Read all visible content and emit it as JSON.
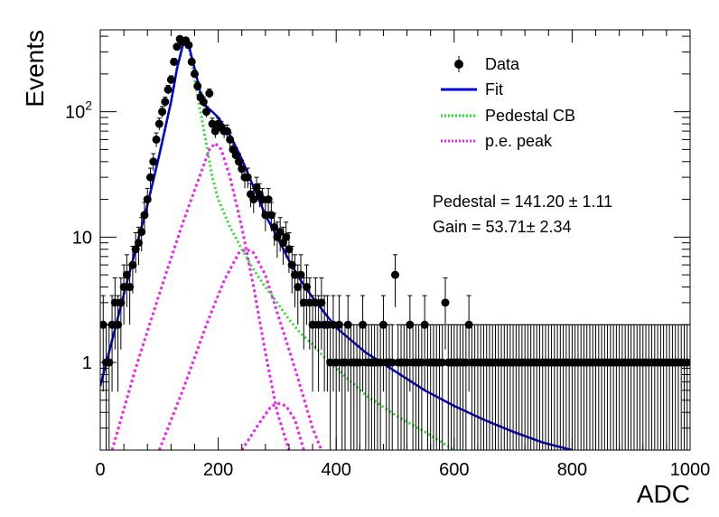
{
  "chart_data": {
    "type": "scatter",
    "xlabel": "ADC",
    "ylabel": "Events",
    "xlim": [
      0,
      1000
    ],
    "ylim": [
      0.2,
      450
    ],
    "yscale": "log",
    "grid": false,
    "x_ticks": [
      0,
      200,
      400,
      600,
      800,
      1000
    ],
    "x_tick_labels": [
      "0",
      "200",
      "400",
      "600",
      "800",
      "1000"
    ],
    "y_ticks": [
      1,
      10,
      100
    ],
    "y_tick_labels": [
      "1",
      "10",
      "10^2"
    ],
    "legend": {
      "position": "top-right",
      "entries": [
        {
          "label": "Data",
          "style": "marker",
          "color": "#000000"
        },
        {
          "label": "Fit",
          "style": "solid",
          "color": "#0000dd"
        },
        {
          "label": "Pedestal CB",
          "style": "dotted",
          "color": "#22dd22"
        },
        {
          "label": "p.e. peak",
          "style": "dotted",
          "color": "#ee22ee"
        }
      ]
    },
    "annotations": [
      {
        "text": "Pedestal = 141.20 ± 1.11"
      },
      {
        "text": "Gain = 53.71± 2.34"
      }
    ],
    "fit_parameters": {
      "pedestal": 141.2,
      "pedestal_error": 1.11,
      "gain": 53.71,
      "gain_error": 2.34
    },
    "data_series": {
      "name": "Data",
      "points": [
        [
          5,
          2
        ],
        [
          10,
          1
        ],
        [
          15,
          1
        ],
        [
          20,
          2
        ],
        [
          25,
          3
        ],
        [
          30,
          2
        ],
        [
          35,
          3
        ],
        [
          40,
          4
        ],
        [
          45,
          5
        ],
        [
          50,
          4
        ],
        [
          55,
          6
        ],
        [
          60,
          8
        ],
        [
          65,
          9
        ],
        [
          70,
          11
        ],
        [
          75,
          15
        ],
        [
          80,
          20
        ],
        [
          85,
          30
        ],
        [
          90,
          40
        ],
        [
          95,
          60
        ],
        [
          100,
          80
        ],
        [
          105,
          100
        ],
        [
          110,
          120
        ],
        [
          115,
          150
        ],
        [
          120,
          180
        ],
        [
          125,
          250
        ],
        [
          130,
          330
        ],
        [
          135,
          380
        ],
        [
          140,
          360
        ],
        [
          145,
          370
        ],
        [
          150,
          340
        ],
        [
          155,
          250
        ],
        [
          160,
          200
        ],
        [
          165,
          160
        ],
        [
          170,
          130
        ],
        [
          175,
          120
        ],
        [
          180,
          100
        ],
        [
          185,
          140
        ],
        [
          190,
          80
        ],
        [
          195,
          70
        ],
        [
          200,
          80
        ],
        [
          205,
          75
        ],
        [
          210,
          70
        ],
        [
          215,
          70
        ],
        [
          220,
          60
        ],
        [
          225,
          50
        ],
        [
          230,
          45
        ],
        [
          235,
          40
        ],
        [
          240,
          35
        ],
        [
          245,
          30
        ],
        [
          250,
          30
        ],
        [
          255,
          22
        ],
        [
          260,
          20
        ],
        [
          265,
          25
        ],
        [
          270,
          22
        ],
        [
          275,
          20
        ],
        [
          280,
          15
        ],
        [
          285,
          20
        ],
        [
          290,
          15
        ],
        [
          295,
          12
        ],
        [
          300,
          10
        ],
        [
          305,
          11
        ],
        [
          310,
          9
        ],
        [
          315,
          10
        ],
        [
          320,
          8
        ],
        [
          325,
          6
        ],
        [
          330,
          5
        ],
        [
          335,
          4
        ],
        [
          340,
          5
        ],
        [
          345,
          3
        ],
        [
          350,
          4
        ],
        [
          355,
          3
        ],
        [
          360,
          2
        ],
        [
          365,
          3
        ],
        [
          370,
          2
        ],
        [
          375,
          3
        ],
        [
          380,
          2
        ],
        [
          385,
          2
        ],
        [
          390,
          1
        ],
        [
          395,
          2
        ],
        [
          400,
          1
        ],
        [
          405,
          2
        ],
        [
          410,
          1
        ],
        [
          415,
          1
        ],
        [
          420,
          2
        ],
        [
          425,
          1
        ],
        [
          430,
          1
        ],
        [
          435,
          1
        ],
        [
          440,
          1
        ],
        [
          445,
          2
        ],
        [
          450,
          1
        ],
        [
          455,
          1
        ],
        [
          460,
          1
        ],
        [
          465,
          1
        ],
        [
          470,
          1
        ],
        [
          475,
          1
        ],
        [
          480,
          2
        ],
        [
          485,
          1
        ],
        [
          490,
          1
        ],
        [
          495,
          1
        ],
        [
          500,
          5
        ],
        [
          505,
          1
        ],
        [
          510,
          1
        ],
        [
          515,
          1
        ],
        [
          520,
          1
        ],
        [
          525,
          2
        ],
        [
          530,
          1
        ],
        [
          535,
          1
        ],
        [
          540,
          1
        ],
        [
          545,
          1
        ],
        [
          550,
          2
        ],
        [
          555,
          1
        ],
        [
          560,
          1
        ],
        [
          565,
          1
        ],
        [
          570,
          1
        ],
        [
          575,
          1
        ],
        [
          580,
          1
        ],
        [
          585,
          3
        ],
        [
          590,
          1
        ],
        [
          595,
          1
        ],
        [
          600,
          1
        ],
        [
          605,
          1
        ],
        [
          610,
          1
        ],
        [
          615,
          1
        ],
        [
          620,
          1
        ],
        [
          625,
          2
        ],
        [
          630,
          1
        ],
        [
          635,
          1
        ],
        [
          640,
          1
        ],
        [
          645,
          1
        ],
        [
          650,
          1
        ],
        [
          655,
          1
        ],
        [
          660,
          1
        ],
        [
          665,
          1
        ],
        [
          670,
          1
        ],
        [
          675,
          1
        ],
        [
          680,
          1
        ],
        [
          685,
          1
        ],
        [
          690,
          1
        ],
        [
          695,
          1
        ],
        [
          700,
          1
        ],
        [
          705,
          1
        ],
        [
          710,
          1
        ],
        [
          715,
          1
        ],
        [
          720,
          1
        ],
        [
          725,
          1
        ],
        [
          730,
          1
        ],
        [
          735,
          1
        ],
        [
          740,
          1
        ],
        [
          745,
          1
        ],
        [
          750,
          1
        ],
        [
          755,
          1
        ],
        [
          760,
          1
        ],
        [
          765,
          1
        ],
        [
          770,
          1
        ],
        [
          775,
          1
        ],
        [
          780,
          1
        ],
        [
          785,
          1
        ],
        [
          790,
          1
        ],
        [
          795,
          1
        ],
        [
          800,
          1
        ],
        [
          805,
          1
        ],
        [
          810,
          1
        ],
        [
          815,
          1
        ],
        [
          820,
          1
        ],
        [
          825,
          1
        ],
        [
          830,
          1
        ],
        [
          835,
          1
        ],
        [
          840,
          1
        ],
        [
          845,
          1
        ],
        [
          850,
          1
        ],
        [
          855,
          1
        ],
        [
          860,
          1
        ],
        [
          865,
          1
        ],
        [
          870,
          1
        ],
        [
          875,
          1
        ],
        [
          880,
          1
        ],
        [
          885,
          1
        ],
        [
          890,
          1
        ],
        [
          895,
          1
        ],
        [
          900,
          1
        ],
        [
          905,
          1
        ],
        [
          910,
          1
        ],
        [
          915,
          1
        ],
        [
          920,
          1
        ],
        [
          925,
          1
        ],
        [
          930,
          1
        ],
        [
          935,
          1
        ],
        [
          940,
          1
        ],
        [
          945,
          1
        ],
        [
          950,
          1
        ],
        [
          955,
          1
        ],
        [
          960,
          1
        ],
        [
          965,
          1
        ],
        [
          970,
          1
        ],
        [
          975,
          1
        ],
        [
          980,
          1
        ],
        [
          985,
          1
        ],
        [
          990,
          1
        ],
        [
          995,
          1
        ]
      ]
    },
    "curves": {
      "fit": {
        "name": "Fit",
        "points": [
          [
            0,
            0.65
          ],
          [
            20,
            1.5
          ],
          [
            40,
            3.5
          ],
          [
            60,
            8
          ],
          [
            80,
            18
          ],
          [
            100,
            45
          ],
          [
            120,
            120
          ],
          [
            130,
            220
          ],
          [
            140,
            340
          ],
          [
            145,
            370
          ],
          [
            150,
            340
          ],
          [
            160,
            220
          ],
          [
            170,
            140
          ],
          [
            180,
            110
          ],
          [
            190,
            100
          ],
          [
            200,
            90
          ],
          [
            220,
            65
          ],
          [
            240,
            42
          ],
          [
            260,
            25
          ],
          [
            280,
            15
          ],
          [
            300,
            10
          ],
          [
            320,
            6.5
          ],
          [
            340,
            4.5
          ],
          [
            360,
            3.3
          ],
          [
            380,
            2.5
          ],
          [
            400,
            1.9
          ],
          [
            450,
            1.2
          ],
          [
            500,
            0.85
          ],
          [
            550,
            0.6
          ],
          [
            600,
            0.45
          ],
          [
            650,
            0.35
          ],
          [
            700,
            0.28
          ],
          [
            750,
            0.23
          ],
          [
            800,
            0.2
          ]
        ]
      },
      "pedestal_cb": {
        "name": "Pedestal CB",
        "points": [
          [
            0,
            0.65
          ],
          [
            20,
            1.5
          ],
          [
            40,
            3.5
          ],
          [
            60,
            8
          ],
          [
            80,
            18
          ],
          [
            100,
            45
          ],
          [
            120,
            120
          ],
          [
            130,
            220
          ],
          [
            140,
            340
          ],
          [
            145,
            370
          ],
          [
            150,
            340
          ],
          [
            160,
            180
          ],
          [
            170,
            100
          ],
          [
            180,
            55
          ],
          [
            190,
            30
          ],
          [
            200,
            20
          ],
          [
            220,
            12
          ],
          [
            240,
            8
          ],
          [
            260,
            5.5
          ],
          [
            280,
            4
          ],
          [
            300,
            3
          ],
          [
            320,
            2.2
          ],
          [
            340,
            1.7
          ],
          [
            360,
            1.4
          ],
          [
            380,
            1.1
          ],
          [
            400,
            0.9
          ],
          [
            450,
            0.55
          ],
          [
            500,
            0.38
          ],
          [
            550,
            0.28
          ],
          [
            600,
            0.2
          ]
        ]
      },
      "pe_peak_1": {
        "name": "p.e. peak",
        "points": [
          [
            20,
            0.2
          ],
          [
            60,
            0.9
          ],
          [
            100,
            3.5
          ],
          [
            140,
            13
          ],
          [
            170,
            32
          ],
          [
            185,
            50
          ],
          [
            195,
            56
          ],
          [
            205,
            50
          ],
          [
            220,
            30
          ],
          [
            240,
            12
          ],
          [
            260,
            4
          ],
          [
            280,
            1.2
          ],
          [
            300,
            0.4
          ],
          [
            320,
            0.2
          ]
        ]
      },
      "pe_peak_2": {
        "name": "p.e. peak",
        "points": [
          [
            100,
            0.2
          ],
          [
            140,
            0.6
          ],
          [
            180,
            2
          ],
          [
            210,
            4.5
          ],
          [
            235,
            7.5
          ],
          [
            248,
            8
          ],
          [
            260,
            7.5
          ],
          [
            280,
            5
          ],
          [
            300,
            2.5
          ],
          [
            330,
            0.9
          ],
          [
            360,
            0.3
          ],
          [
            375,
            0.2
          ]
        ]
      },
      "pe_peak_3": {
        "name": "p.e. peak",
        "points": [
          [
            240,
            0.2
          ],
          [
            270,
            0.33
          ],
          [
            290,
            0.45
          ],
          [
            303,
            0.47
          ],
          [
            315,
            0.45
          ],
          [
            330,
            0.35
          ],
          [
            345,
            0.2
          ]
        ]
      }
    }
  }
}
